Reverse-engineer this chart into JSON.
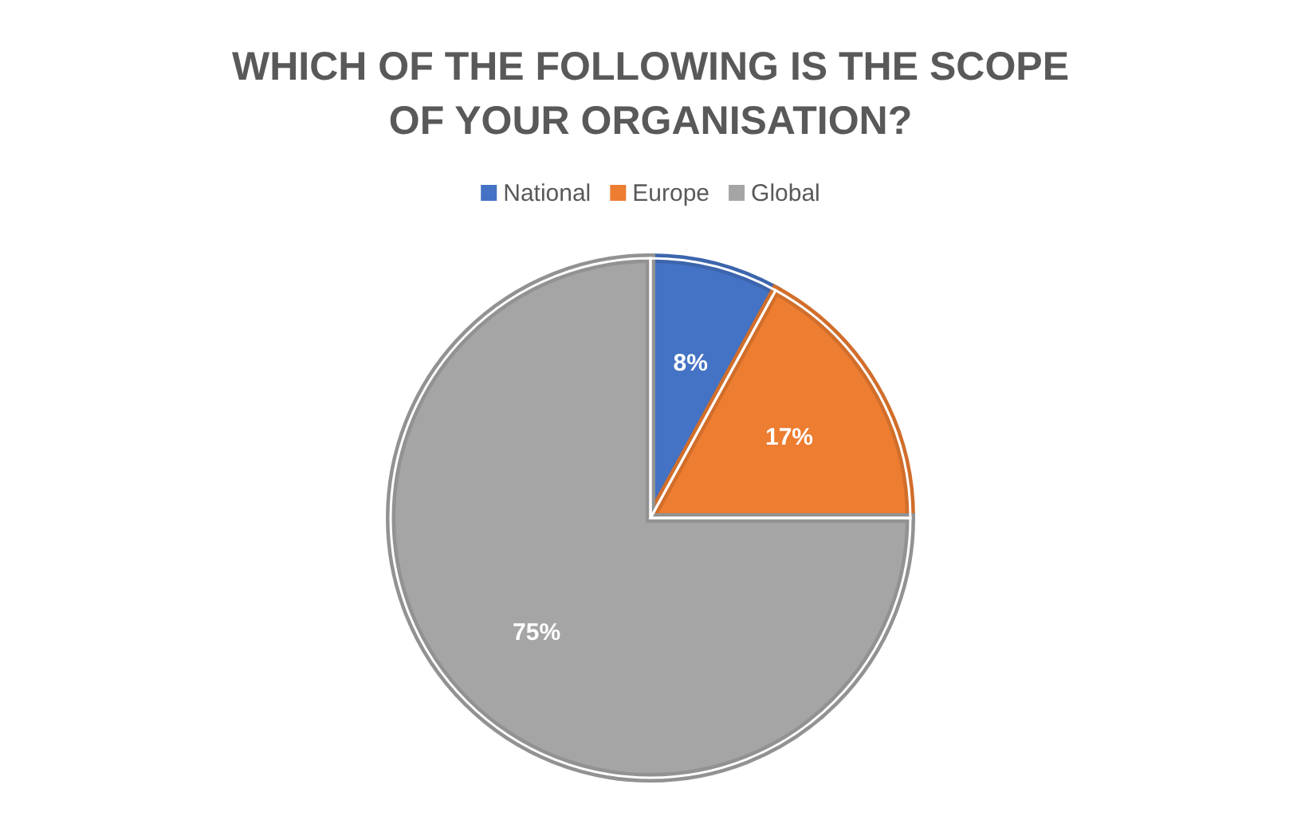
{
  "chart_data": {
    "type": "pie",
    "title": "WHICH OF THE FOLLOWING IS THE SCOPE OF YOUR ORGANISATION?",
    "categories": [
      "National",
      "Europe",
      "Global"
    ],
    "values": [
      8,
      17,
      75
    ],
    "value_labels": [
      "8%",
      "17%",
      "75%"
    ],
    "colors": [
      "#4472c4",
      "#ed7d31",
      "#a5a5a5"
    ],
    "legend": "top"
  }
}
